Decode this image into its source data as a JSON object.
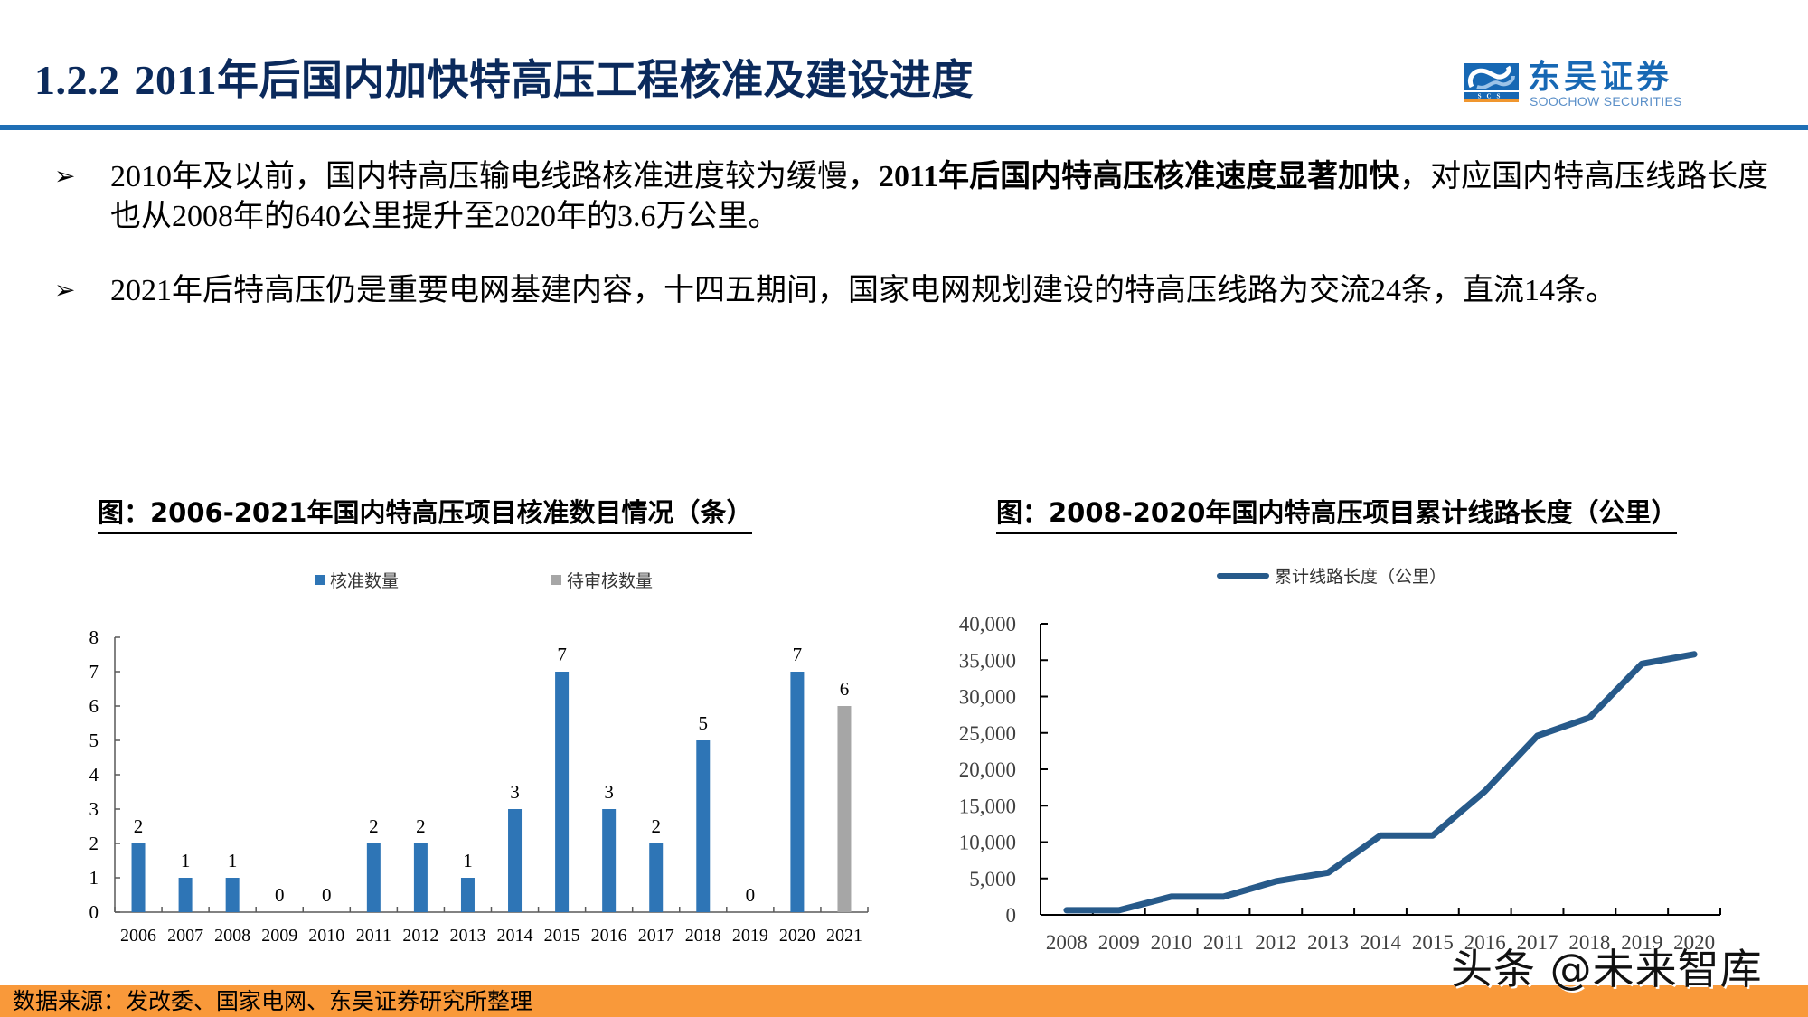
{
  "header": {
    "section_number": "1.2.2",
    "title": "2011年后国内加快特高压工程核准及建设进度",
    "logo": {
      "cn": "东吴证券",
      "en": "SOOCHOW SECURITIES",
      "mark": "SCS",
      "colors": {
        "primary": "#1768b4",
        "accent": "#f0962e"
      }
    }
  },
  "bullets": [
    {
      "icon": "arrow-bullet-icon",
      "pre": "2010年及以前，国内特高压输电线路核准进度较为缓慢，",
      "bold": "2011年后国内特高压核准速度显著加快",
      "post": "，对应国内特高压线路长度也从2008年的640公里提升至2020年的3.6万公里。"
    },
    {
      "icon": "arrow-bullet-icon",
      "pre": "2021年后特高压仍是重要电网基建内容，十四五期间，国家电网规划建设的特高压线路为交流24条，直流14条。",
      "bold": "",
      "post": ""
    }
  ],
  "chart_data": [
    {
      "type": "bar",
      "title": "图：2006-2021年国内特高压项目核准数目情况（条）",
      "categories": [
        "2006",
        "2007",
        "2008",
        "2009",
        "2010",
        "2011",
        "2012",
        "2013",
        "2014",
        "2015",
        "2016",
        "2017",
        "2018",
        "2019",
        "2020",
        "2021"
      ],
      "series": [
        {
          "name": "核准数量",
          "color": "#2e75b6",
          "values": [
            2,
            1,
            1,
            0,
            0,
            2,
            2,
            1,
            3,
            7,
            3,
            2,
            5,
            0,
            7,
            null
          ]
        },
        {
          "name": "待审核数量",
          "color": "#a6a6a6",
          "values": [
            null,
            null,
            null,
            null,
            null,
            null,
            null,
            null,
            null,
            null,
            null,
            null,
            null,
            null,
            null,
            6
          ]
        }
      ],
      "data_labels": [
        "2",
        "1",
        "1",
        "0",
        "0",
        "2",
        "2",
        "1",
        "3",
        "7",
        "3",
        "2",
        "5",
        "0",
        "7",
        "6"
      ],
      "xlabel": "",
      "ylabel": "",
      "ylim": [
        0,
        8
      ],
      "yticks": [
        "0",
        "1",
        "2",
        "3",
        "4",
        "5",
        "6",
        "7",
        "8"
      ],
      "grid": false,
      "legend_position": "top"
    },
    {
      "type": "line",
      "title": "图：2008-2020年国内特高压项目累计线路长度（公里）",
      "x": [
        "2008",
        "2009",
        "2010",
        "2011",
        "2012",
        "2013",
        "2014",
        "2015",
        "2016",
        "2017",
        "2018",
        "2019",
        "2020"
      ],
      "series": [
        {
          "name": "累计线路长度（公里）",
          "color": "#275a8a",
          "values": [
            640,
            640,
            2500,
            2500,
            4600,
            5800,
            10900,
            10900,
            17000,
            24600,
            27100,
            34500,
            35800
          ]
        }
      ],
      "xlabel": "",
      "ylabel": "",
      "ylim": [
        0,
        40000
      ],
      "yticks": [
        "0",
        "5,000",
        "10,000",
        "15,000",
        "20,000",
        "25,000",
        "30,000",
        "35,000",
        "40,000"
      ],
      "grid": false,
      "legend_position": "top"
    }
  ],
  "footer": {
    "source": "数据来源：发改委、国家电网、东吴证券研究所整理",
    "color": "#f9993a"
  },
  "watermark": "头条 @未来智库"
}
